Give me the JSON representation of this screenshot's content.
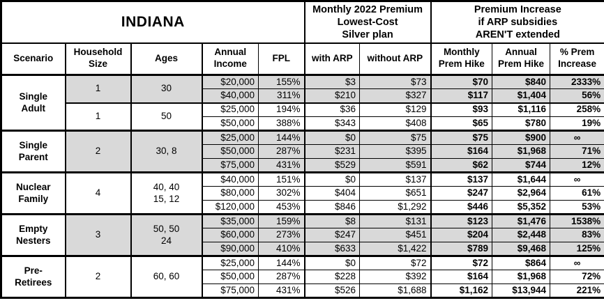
{
  "colors": {
    "shaded_cell": "#d9d9d9",
    "border": "#000000",
    "background": "#ffffff",
    "text": "#000000"
  },
  "chart_data": {
    "type": "table",
    "title": "INDIANA",
    "header": {
      "top_left": "INDIANA",
      "top_mid": "Monthly 2022 Premium\nLowest-Cost\nSilver plan",
      "top_right": "Premium Increase\nif ARP subsidies\nAREN'T extended",
      "columns": [
        "Scenario",
        "Household\nSize",
        "Ages",
        "Annual\nIncome",
        "FPL",
        "with ARP",
        "without ARP",
        "Monthly\nPrem Hike",
        "Annual\nPrem Hike",
        "% Prem\nIncrease"
      ]
    },
    "groups": [
      {
        "scenario": "Single\nAdult",
        "subgroups": [
          {
            "size": "1",
            "ages": "30",
            "shaded": true,
            "rows": [
              {
                "income": "$20,000",
                "fpl": "155%",
                "with_arp": "$3",
                "without_arp": "$73",
                "monthly_hike": "$70",
                "annual_hike": "$840",
                "pct_increase": "2333%"
              },
              {
                "income": "$40,000",
                "fpl": "311%",
                "with_arp": "$210",
                "without_arp": "$327",
                "monthly_hike": "$117",
                "annual_hike": "$1,404",
                "pct_increase": "56%"
              }
            ]
          },
          {
            "size": "1",
            "ages": "50",
            "shaded": false,
            "rows": [
              {
                "income": "$25,000",
                "fpl": "194%",
                "with_arp": "$36",
                "without_arp": "$129",
                "monthly_hike": "$93",
                "annual_hike": "$1,116",
                "pct_increase": "258%"
              },
              {
                "income": "$50,000",
                "fpl": "388%",
                "with_arp": "$343",
                "without_arp": "$408",
                "monthly_hike": "$65",
                "annual_hike": "$780",
                "pct_increase": "19%"
              }
            ]
          }
        ]
      },
      {
        "scenario": "Single\nParent",
        "subgroups": [
          {
            "size": "2",
            "ages": "30, 8",
            "shaded": true,
            "rows": [
              {
                "income": "$25,000",
                "fpl": "144%",
                "with_arp": "$0",
                "without_arp": "$75",
                "monthly_hike": "$75",
                "annual_hike": "$900",
                "pct_increase": "∞"
              },
              {
                "income": "$50,000",
                "fpl": "287%",
                "with_arp": "$231",
                "without_arp": "$395",
                "monthly_hike": "$164",
                "annual_hike": "$1,968",
                "pct_increase": "71%"
              },
              {
                "income": "$75,000",
                "fpl": "431%",
                "with_arp": "$529",
                "without_arp": "$591",
                "monthly_hike": "$62",
                "annual_hike": "$744",
                "pct_increase": "12%"
              }
            ]
          }
        ]
      },
      {
        "scenario": "Nuclear\nFamily",
        "subgroups": [
          {
            "size": "4",
            "ages": "40, 40\n15, 12",
            "shaded": false,
            "rows": [
              {
                "income": "$40,000",
                "fpl": "151%",
                "with_arp": "$0",
                "without_arp": "$137",
                "monthly_hike": "$137",
                "annual_hike": "$1,644",
                "pct_increase": "∞"
              },
              {
                "income": "$80,000",
                "fpl": "302%",
                "with_arp": "$404",
                "without_arp": "$651",
                "monthly_hike": "$247",
                "annual_hike": "$2,964",
                "pct_increase": "61%"
              },
              {
                "income": "$120,000",
                "fpl": "453%",
                "with_arp": "$846",
                "without_arp": "$1,292",
                "monthly_hike": "$446",
                "annual_hike": "$5,352",
                "pct_increase": "53%"
              }
            ]
          }
        ]
      },
      {
        "scenario": "Empty\nNesters",
        "subgroups": [
          {
            "size": "3",
            "ages": "50, 50\n24",
            "shaded": true,
            "rows": [
              {
                "income": "$35,000",
                "fpl": "159%",
                "with_arp": "$8",
                "without_arp": "$131",
                "monthly_hike": "$123",
                "annual_hike": "$1,476",
                "pct_increase": "1538%"
              },
              {
                "income": "$60,000",
                "fpl": "273%",
                "with_arp": "$247",
                "without_arp": "$451",
                "monthly_hike": "$204",
                "annual_hike": "$2,448",
                "pct_increase": "83%"
              },
              {
                "income": "$90,000",
                "fpl": "410%",
                "with_arp": "$633",
                "without_arp": "$1,422",
                "monthly_hike": "$789",
                "annual_hike": "$9,468",
                "pct_increase": "125%"
              }
            ]
          }
        ]
      },
      {
        "scenario": "Pre-\nRetirees",
        "subgroups": [
          {
            "size": "2",
            "ages": "60, 60",
            "shaded": false,
            "rows": [
              {
                "income": "$25,000",
                "fpl": "144%",
                "with_arp": "$0",
                "without_arp": "$72",
                "monthly_hike": "$72",
                "annual_hike": "$864",
                "pct_increase": "∞"
              },
              {
                "income": "$50,000",
                "fpl": "287%",
                "with_arp": "$228",
                "without_arp": "$392",
                "monthly_hike": "$164",
                "annual_hike": "$1,968",
                "pct_increase": "72%"
              },
              {
                "income": "$75,000",
                "fpl": "431%",
                "with_arp": "$526",
                "without_arp": "$1,688",
                "monthly_hike": "$1,162",
                "annual_hike": "$13,944",
                "pct_increase": "221%"
              }
            ]
          }
        ]
      }
    ]
  }
}
